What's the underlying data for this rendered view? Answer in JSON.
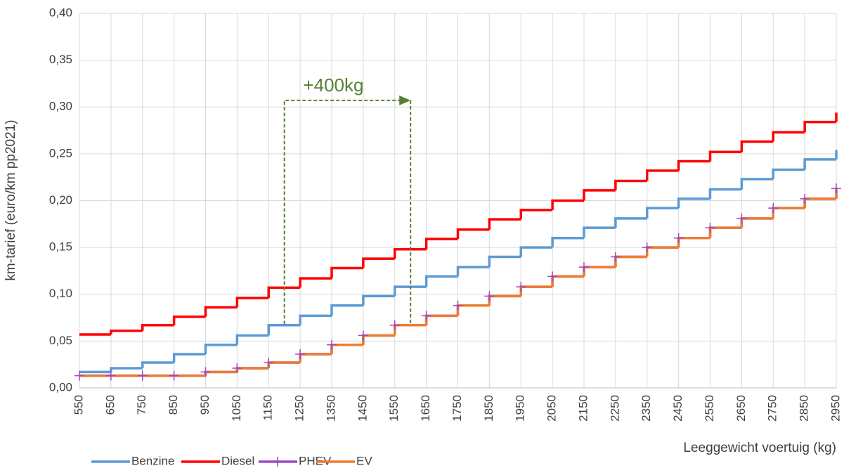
{
  "chart_data": {
    "type": "step",
    "x": [
      550,
      650,
      750,
      850,
      950,
      1050,
      1150,
      1250,
      1350,
      1450,
      1550,
      1650,
      1750,
      1850,
      1950,
      2050,
      2150,
      2250,
      2350,
      2450,
      2550,
      2650,
      2750,
      2850,
      2950
    ],
    "series": [
      {
        "name": "Benzine",
        "color": "#5b9bd5",
        "values": [
          0.017,
          0.021,
          0.027,
          0.036,
          0.046,
          0.056,
          0.067,
          0.077,
          0.088,
          0.098,
          0.108,
          0.119,
          0.129,
          0.14,
          0.15,
          0.16,
          0.171,
          0.181,
          0.192,
          0.202,
          0.212,
          0.223,
          0.233,
          0.244,
          0.254
        ]
      },
      {
        "name": "Diesel",
        "color": "#ff0000",
        "values": [
          0.057,
          0.061,
          0.067,
          0.076,
          0.086,
          0.096,
          0.107,
          0.117,
          0.128,
          0.138,
          0.148,
          0.159,
          0.169,
          0.18,
          0.19,
          0.2,
          0.211,
          0.221,
          0.232,
          0.242,
          0.252,
          0.263,
          0.273,
          0.284,
          0.294
        ]
      },
      {
        "name": "PHEV",
        "color": "#9e48c8",
        "marker": "plus",
        "values": [
          0.013,
          0.013,
          0.013,
          0.013,
          0.017,
          0.021,
          0.027,
          0.036,
          0.046,
          0.056,
          0.067,
          0.077,
          0.088,
          0.098,
          0.108,
          0.119,
          0.129,
          0.14,
          0.15,
          0.16,
          0.171,
          0.181,
          0.192,
          0.202,
          0.213
        ]
      },
      {
        "name": "EV",
        "color": "#ed7d31",
        "values": [
          0.013,
          0.013,
          0.013,
          0.013,
          0.017,
          0.021,
          0.027,
          0.036,
          0.046,
          0.056,
          0.067,
          0.077,
          0.088,
          0.098,
          0.108,
          0.119,
          0.129,
          0.14,
          0.15,
          0.16,
          0.171,
          0.181,
          0.192,
          0.202,
          0.213
        ]
      }
    ],
    "xlim": [
      550,
      2950
    ],
    "xticks": [
      550,
      650,
      750,
      850,
      950,
      1050,
      1150,
      1250,
      1350,
      1450,
      1550,
      1650,
      1750,
      1850,
      1950,
      2050,
      2150,
      2250,
      2350,
      2450,
      2550,
      2650,
      2750,
      2850,
      2950
    ],
    "ylim": [
      0,
      0.4
    ],
    "yticks": [
      {
        "value": 0,
        "label": "0,00"
      },
      {
        "value": 0.05,
        "label": "0,05"
      },
      {
        "value": 0.1,
        "label": "0,10"
      },
      {
        "value": 0.15,
        "label": "0,15"
      },
      {
        "value": 0.2,
        "label": "0,20"
      },
      {
        "value": 0.25,
        "label": "0,25"
      },
      {
        "value": 0.3,
        "label": "0,30"
      },
      {
        "value": 0.35,
        "label": "0,35"
      },
      {
        "value": 0.4,
        "label": "0,40"
      }
    ],
    "grid": true,
    "x_label": "Leeggewicht voertuig (kg)",
    "y_label": "km-tarief (euro/km pp2021)",
    "legend": "bottom-left",
    "annotation": {
      "text": "+400kg",
      "color": "#548235",
      "x": [
        1200,
        1600
      ],
      "y": [
        0.068,
        0.307
      ]
    }
  }
}
